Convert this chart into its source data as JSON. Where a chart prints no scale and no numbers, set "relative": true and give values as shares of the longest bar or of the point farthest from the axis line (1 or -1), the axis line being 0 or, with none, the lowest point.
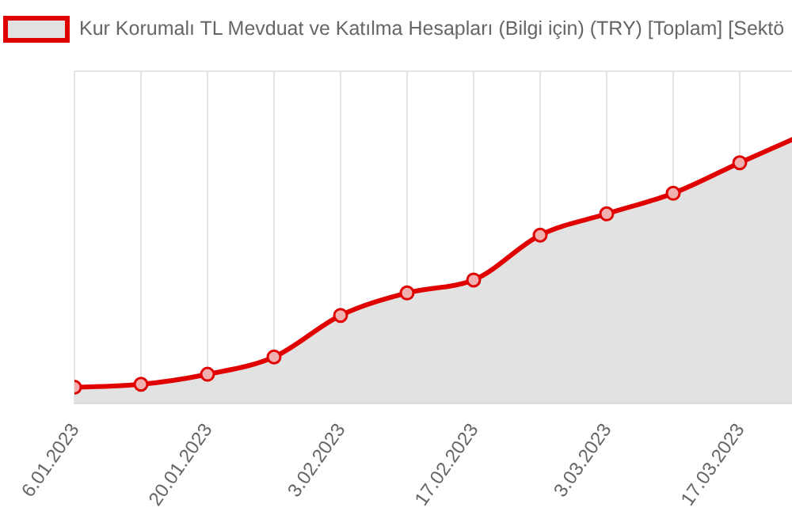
{
  "chart_data": {
    "type": "area",
    "categories": [
      "6.01.2023",
      null,
      "20.01.2023",
      null,
      "3.02.2023",
      null,
      "17.02.2023",
      null,
      "3.03.2023",
      null,
      "17.03.2023",
      null
    ],
    "series": [
      {
        "name": "Kur Korumalı TL Mevduat ve Katılma Hesapları (Bilgi için) (TRY) [Toplam] [Sektö",
        "color": "#e00000",
        "values": [
          0.06,
          0.071,
          0.108,
          0.172,
          0.326,
          0.409,
          0.457,
          0.623,
          0.702,
          0.778,
          0.891,
          1
        ]
      }
    ],
    "relative": true,
    "grid": true,
    "legend": "top",
    "marker": "circle",
    "line_style": "solid"
  }
}
